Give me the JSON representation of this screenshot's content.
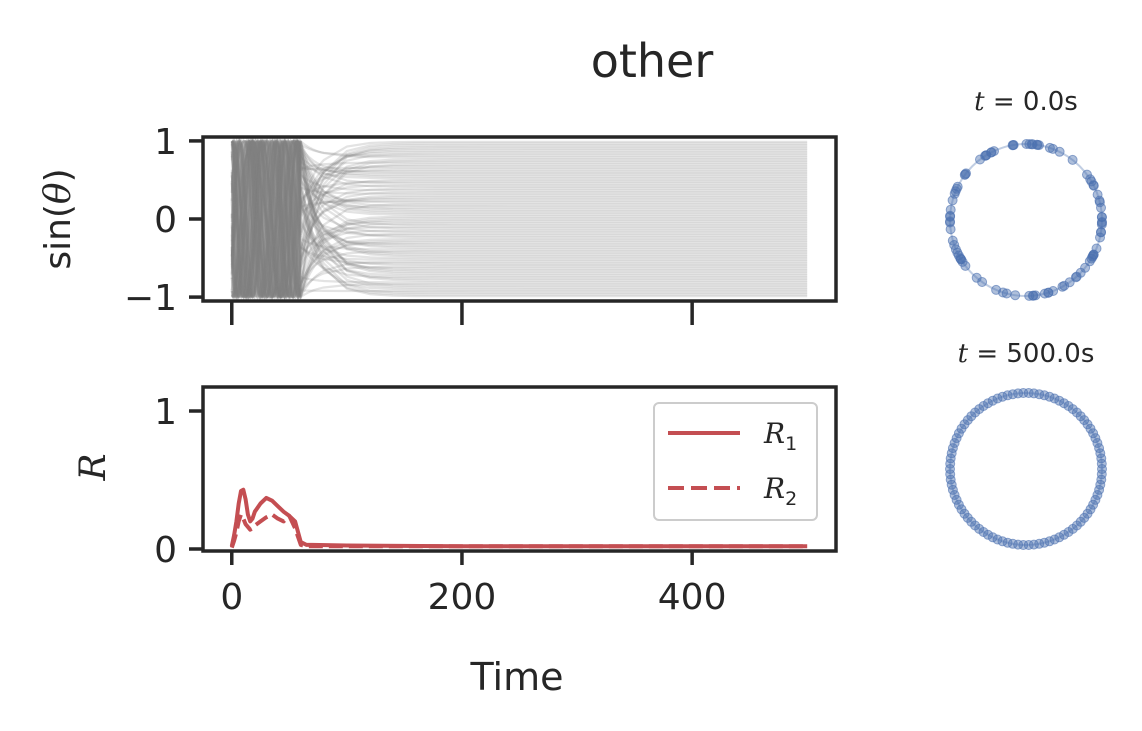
{
  "figure": {
    "title": "other"
  },
  "chart_data": [
    {
      "type": "line",
      "panel": "sin-theta",
      "ylabel_prefix": "sin(",
      "ylabel_var": "θ",
      "ylabel_suffix": ")",
      "xlim": [
        -25,
        525
      ],
      "ylim": [
        -1.05,
        1.05
      ],
      "xticks": [
        0,
        200,
        400
      ],
      "yticks": [
        1,
        0,
        -1
      ],
      "ytick_labels": [
        "1",
        "0",
        "−1"
      ],
      "x_ticklabels_shown": false,
      "x_range": [
        0,
        500
      ],
      "n_oscillators": 90,
      "line_color": "#808080",
      "description_values": {
        "transient_end_time": 60,
        "final_levels": "static phases spread uniformly over [-1, 1]"
      }
    },
    {
      "type": "line",
      "panel": "order-parameter",
      "ylabel": "R",
      "xlabel": "Time",
      "xlim": [
        -25,
        525
      ],
      "ylim": [
        0,
        1
      ],
      "xticks": [
        0,
        200,
        400
      ],
      "xtick_labels": [
        "0",
        "200",
        "400"
      ],
      "yticks": [
        1,
        0
      ],
      "ytick_labels": [
        "1",
        "0"
      ],
      "legend_position": "top-right",
      "series": [
        {
          "name": "R",
          "name_sub": "1",
          "style": "solid",
          "color": "#c44e52",
          "x": [
            0,
            2,
            4,
            6,
            8,
            10,
            12,
            14,
            16,
            18,
            20,
            25,
            30,
            35,
            40,
            45,
            50,
            55,
            60,
            65,
            70,
            100,
            200,
            300,
            400,
            500
          ],
          "y": [
            0.02,
            0.1,
            0.2,
            0.33,
            0.42,
            0.43,
            0.36,
            0.25,
            0.2,
            0.22,
            0.27,
            0.33,
            0.37,
            0.35,
            0.31,
            0.27,
            0.24,
            0.2,
            0.05,
            0.03,
            0.03,
            0.025,
            0.02,
            0.02,
            0.02,
            0.02
          ]
        },
        {
          "name": "R",
          "name_sub": "2",
          "style": "dashed",
          "color": "#c44e52",
          "x": [
            0,
            2,
            4,
            6,
            8,
            10,
            12,
            14,
            16,
            18,
            20,
            25,
            30,
            35,
            40,
            45,
            50,
            55,
            60,
            65,
            70,
            100,
            200,
            300,
            400,
            500
          ],
          "y": [
            0.01,
            0.06,
            0.12,
            0.2,
            0.25,
            0.22,
            0.18,
            0.16,
            0.14,
            0.15,
            0.17,
            0.2,
            0.23,
            0.25,
            0.22,
            0.2,
            0.24,
            0.15,
            0.03,
            0.02,
            0.02,
            0.02,
            0.02,
            0.02,
            0.02,
            0.02
          ]
        }
      ]
    },
    {
      "type": "scatter",
      "panel": "phase-circle-start",
      "title_var": "t",
      "title_rest": " = 0.0s",
      "point_color": "#4c72b0",
      "n_points": 90,
      "distribution": "random on unit circle"
    },
    {
      "type": "scatter",
      "panel": "phase-circle-end",
      "title_var": "t",
      "title_rest": " = 500.0s",
      "point_color": "#4c72b0",
      "n_points": 90,
      "distribution": "uniform on unit circle"
    }
  ]
}
